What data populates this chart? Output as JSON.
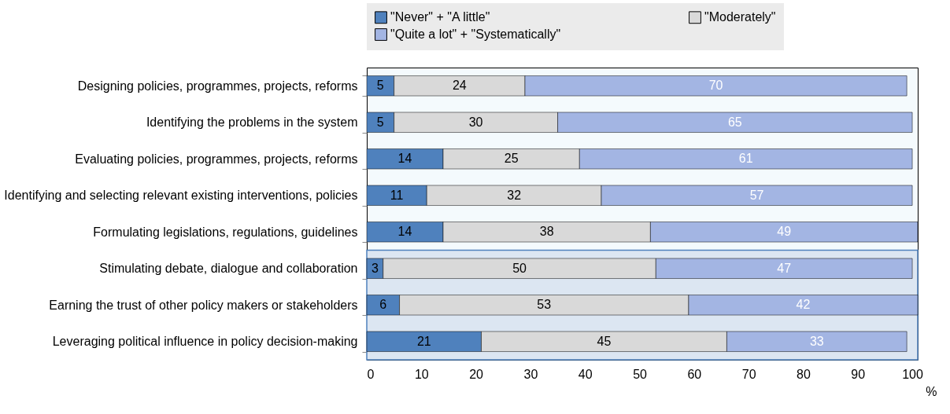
{
  "chart_data": {
    "type": "bar",
    "orientation": "horizontal",
    "stacked": true,
    "data_labels": true,
    "xlabel": "%",
    "legend": "top",
    "categories": [
      "Designing policies, programmes, projects, reforms",
      "Identifying the problems in the system",
      "Evaluating policies, programmes, projects, reforms",
      "Identifying and selecting relevant existing interventions, policies",
      "Formulating legislations, regulations, guidelines",
      "Stimulating debate, dialogue and collaboration",
      "Earning the trust of other policy makers or stakeholders",
      "Leveraging political influence in policy decision-making"
    ],
    "series": [
      {
        "name": "\"Never\" + \"A little\"",
        "color": "#4f81bd",
        "values": [
          5,
          5,
          14,
          11,
          14,
          3,
          6,
          21
        ]
      },
      {
        "name": "\"Moderately\"",
        "color": "#d9d9d9",
        "values": [
          24,
          30,
          25,
          32,
          38,
          50,
          53,
          45
        ]
      },
      {
        "name": "\"Quite a lot\" + \"Systematically\"",
        "color": "#a3b5e3",
        "values": [
          70,
          65,
          61,
          57,
          49,
          47,
          42,
          33
        ]
      }
    ],
    "xlim": [
      0,
      101
    ],
    "xticks": [
      0,
      10,
      20,
      30,
      40,
      50,
      60,
      70,
      80,
      90,
      100
    ],
    "bands": [
      {
        "axis": "y",
        "from": "Stimulating debate, dialogue and collaboration",
        "to": "Leveraging political influence in policy decision-making",
        "color": "#dce6f2"
      }
    ]
  }
}
